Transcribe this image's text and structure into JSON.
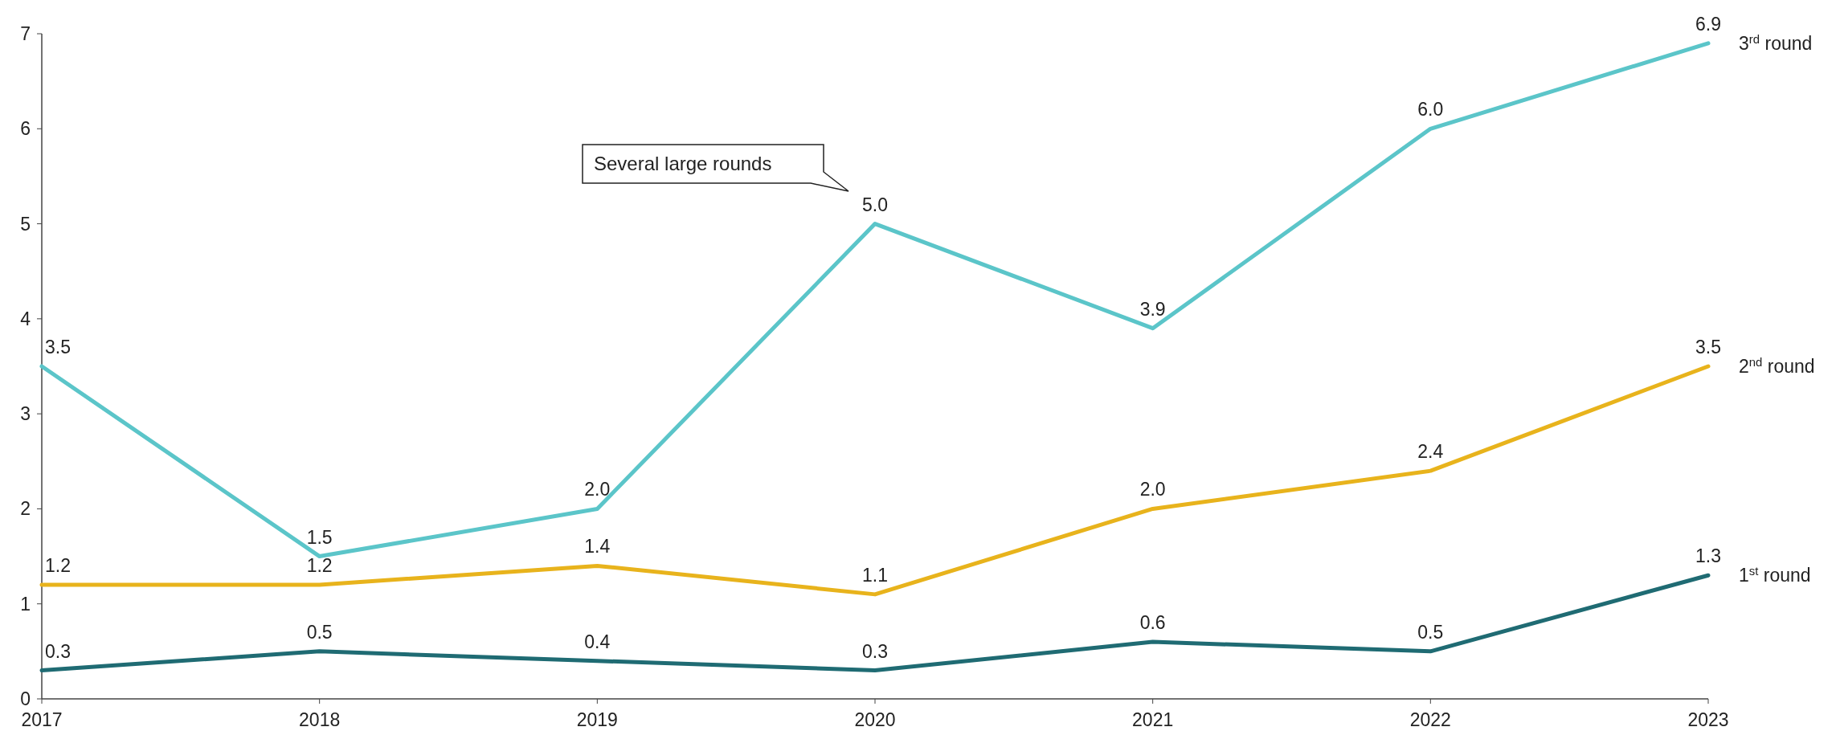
{
  "chart_data": {
    "type": "line",
    "x": [
      2017,
      2018,
      2019,
      2020,
      2021,
      2022,
      2023
    ],
    "series": [
      {
        "name": "3$^{rd}$ round",
        "color": "#5bc5c9",
        "values": [
          3.5,
          1.5,
          2.0,
          5.0,
          3.9,
          6.0,
          6.9
        ],
        "value_labels": [
          "3.5",
          "1.5",
          "2.0",
          "5.0",
          "3.9",
          "6.0",
          "6.9"
        ]
      },
      {
        "name": "2$^{nd}$ round",
        "color": "#e8b31c",
        "values": [
          1.2,
          1.2,
          1.4,
          1.1,
          2.0,
          2.4,
          3.5
        ],
        "value_labels": [
          "1.2",
          "1.2",
          "1.4",
          "1.1",
          "2.0",
          "2.4",
          "3.5"
        ]
      },
      {
        "name": "1$^{st}$ round",
        "color": "#1f6b73",
        "values": [
          0.3,
          0.5,
          0.4,
          0.3,
          0.6,
          0.5,
          1.3
        ],
        "value_labels": [
          "0.3",
          "0.5",
          "0.4",
          "0.3",
          "0.6",
          "0.5",
          "1.3"
        ]
      }
    ],
    "xlim": [
      2017,
      2023
    ],
    "xticks": [
      2017,
      2018,
      2019,
      2020,
      2021,
      2022,
      2023
    ],
    "ylim": [
      0,
      7
    ],
    "yticks": [
      0,
      1,
      2,
      3,
      4,
      5,
      6,
      7
    ],
    "legend": false,
    "grid": false,
    "marker": "none",
    "line_style": "solid",
    "annotations": [
      "Several large rounds"
    ]
  }
}
